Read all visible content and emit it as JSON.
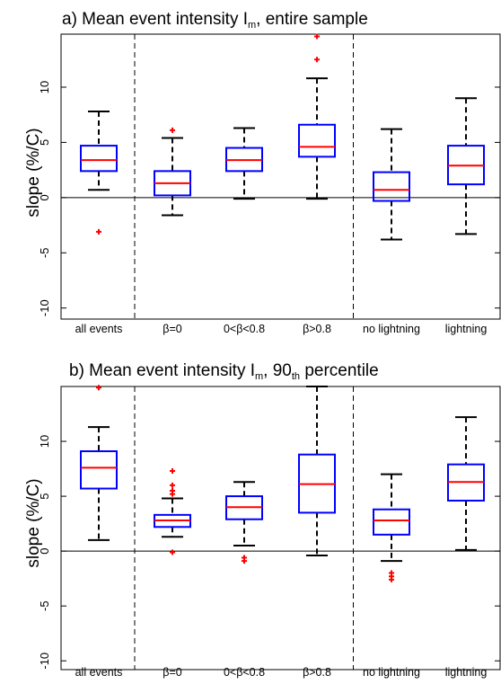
{
  "chart_data": [
    {
      "type": "box",
      "title": {
        "prefix": "a) Mean event intensity I",
        "sub": "m",
        "suffix": ", entire sample",
        "sup": ""
      },
      "ylabel": "slope (%/C)",
      "ylim": [
        -11,
        14.8
      ],
      "yticks": [
        -10,
        -5,
        0,
        5,
        10
      ],
      "ytick_labels": [
        "-10",
        "-5",
        "0",
        "5",
        "10"
      ],
      "categories": [
        "all events",
        "β=0",
        "0<β<0.8",
        "β>0.8",
        "no lightning",
        "lightning"
      ],
      "separators_after": [
        0,
        3
      ],
      "zero_line": true,
      "colors": {
        "box": "#0000ff",
        "median": "#ff0000",
        "whisker": "#000000",
        "outlier": "#ff0000"
      },
      "boxes": [
        {
          "q1": 2.4,
          "median": 3.4,
          "q3": 4.7,
          "whislo": 0.7,
          "whishi": 7.8,
          "outliers": [
            -3.1
          ]
        },
        {
          "q1": 0.2,
          "median": 1.3,
          "q3": 2.4,
          "whislo": -1.6,
          "whishi": 5.4,
          "outliers": [
            6.1
          ]
        },
        {
          "q1": 2.4,
          "median": 3.4,
          "q3": 4.5,
          "whislo": -0.1,
          "whishi": 6.3,
          "outliers": []
        },
        {
          "q1": 3.7,
          "median": 4.6,
          "q3": 6.6,
          "whislo": -0.1,
          "whishi": 10.8,
          "outliers": [
            12.5,
            14.6
          ]
        },
        {
          "q1": -0.3,
          "median": 0.7,
          "q3": 2.3,
          "whislo": -3.8,
          "whishi": 6.2,
          "outliers": []
        },
        {
          "q1": 1.2,
          "median": 2.9,
          "q3": 4.7,
          "whislo": -3.3,
          "whishi": 9.0,
          "outliers": []
        }
      ]
    },
    {
      "type": "box",
      "title": {
        "prefix": "b) Mean event intensity I",
        "sub": "m",
        "suffix": ", 90",
        "sup": "th",
        "suffix2": " percentile"
      },
      "ylabel": "slope (%/C)",
      "ylim": [
        -10.8,
        15.0
      ],
      "yticks": [
        -10,
        -5,
        0,
        5,
        10
      ],
      "ytick_labels": [
        "-10",
        "-5",
        "0",
        "5",
        "10"
      ],
      "categories": [
        "all events",
        "β=0",
        "0<β<0.8",
        "β>0.8",
        "no lightning",
        "lightning"
      ],
      "separators_after": [
        0,
        3
      ],
      "zero_line": true,
      "colors": {
        "box": "#0000ff",
        "median": "#ff0000",
        "whisker": "#000000",
        "outlier": "#ff0000"
      },
      "boxes": [
        {
          "q1": 5.7,
          "median": 7.6,
          "q3": 9.1,
          "whislo": 1.0,
          "whishi": 11.3,
          "outliers": [
            14.9
          ]
        },
        {
          "q1": 2.2,
          "median": 2.8,
          "q3": 3.3,
          "whislo": 1.3,
          "whishi": 4.8,
          "outliers": [
            5.2,
            5.5,
            6.0,
            7.3,
            -0.1
          ]
        },
        {
          "q1": 2.9,
          "median": 4.0,
          "q3": 5.0,
          "whislo": 0.5,
          "whishi": 6.3,
          "outliers": [
            -0.6,
            -0.9
          ]
        },
        {
          "q1": 3.5,
          "median": 6.1,
          "q3": 8.8,
          "whislo": -0.4,
          "whishi": 15.0,
          "outliers": []
        },
        {
          "q1": 1.5,
          "median": 2.8,
          "q3": 3.8,
          "whislo": -0.9,
          "whishi": 7.0,
          "outliers": [
            -2.0,
            -2.3,
            -2.6
          ]
        },
        {
          "q1": 4.6,
          "median": 6.3,
          "q3": 7.9,
          "whislo": 0.1,
          "whishi": 12.2,
          "outliers": []
        }
      ]
    }
  ]
}
